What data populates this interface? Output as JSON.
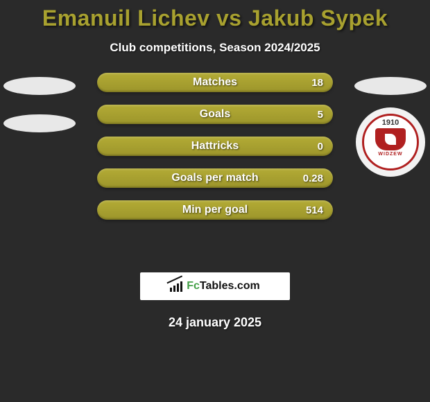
{
  "title_color": "#a8a12f",
  "title": "Emanuil Lichev vs Jakub Sypek",
  "subtitle": "Club competitions, Season 2024/2025",
  "bar_color": "#a8a12f",
  "bar_bg_gradient": [
    "#b3ab35",
    "#9c952b"
  ],
  "background_color": "#2a2a2a",
  "stats": [
    {
      "label": "Matches",
      "value": "18"
    },
    {
      "label": "Goals",
      "value": "5"
    },
    {
      "label": "Hattricks",
      "value": "0"
    },
    {
      "label": "Goals per match",
      "value": "0.28"
    },
    {
      "label": "Min per goal",
      "value": "514"
    }
  ],
  "left_player": {
    "ellipses": 2
  },
  "right_player": {
    "ellipses": 1,
    "badge_year": "1910",
    "badge_text": "WIDZEW"
  },
  "brand": {
    "prefix": "Fc",
    "suffix": "Tables.com"
  },
  "date": "24 january 2025"
}
